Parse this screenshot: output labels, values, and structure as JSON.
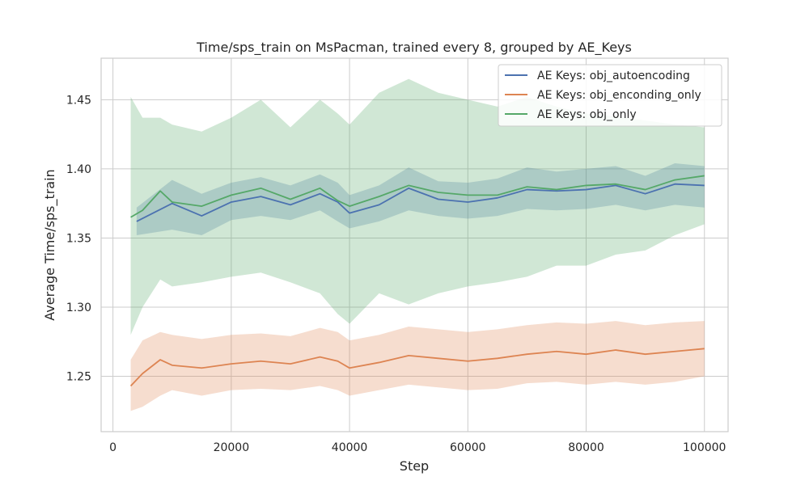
{
  "chart_data": {
    "type": "line",
    "title": "Time/sps_train on MsPacman, trained every 8, grouped by AE_Keys",
    "xlabel": "Step",
    "ylabel": "Average Time/sps_train",
    "xlim": [
      -2000,
      104000
    ],
    "ylim": [
      1.21,
      1.48
    ],
    "xticks": [
      0,
      20000,
      40000,
      60000,
      80000,
      100000
    ],
    "xtick_labels": [
      "0",
      "20000",
      "40000",
      "60000",
      "80000",
      "100000"
    ],
    "yticks": [
      1.25,
      1.3,
      1.35,
      1.4,
      1.45
    ],
    "ytick_labels": [
      "1.25",
      "1.30",
      "1.35",
      "1.40",
      "1.45"
    ],
    "grid": true,
    "legend_position": "top-right",
    "series": [
      {
        "name": "AE Keys: obj_autoencoding",
        "color": "#4c72b0",
        "x": [
          4000,
          10000,
          15000,
          20000,
          25000,
          30000,
          35000,
          38000,
          40000,
          45000,
          50000,
          55000,
          60000,
          65000,
          70000,
          75000,
          80000,
          85000,
          90000,
          95000,
          100000
        ],
        "y": [
          1.362,
          1.375,
          1.366,
          1.376,
          1.38,
          1.374,
          1.382,
          1.376,
          1.368,
          1.374,
          1.386,
          1.378,
          1.376,
          1.379,
          1.385,
          1.384,
          1.385,
          1.388,
          1.382,
          1.389,
          1.388
        ],
        "lower": [
          1.352,
          1.356,
          1.352,
          1.363,
          1.366,
          1.363,
          1.37,
          1.362,
          1.357,
          1.362,
          1.37,
          1.366,
          1.364,
          1.366,
          1.371,
          1.37,
          1.371,
          1.374,
          1.37,
          1.374,
          1.372
        ],
        "upper": [
          1.372,
          1.392,
          1.382,
          1.39,
          1.394,
          1.388,
          1.396,
          1.39,
          1.381,
          1.388,
          1.401,
          1.391,
          1.39,
          1.393,
          1.401,
          1.398,
          1.4,
          1.402,
          1.395,
          1.404,
          1.402
        ]
      },
      {
        "name": "AE Keys: obj_enconding_only",
        "color": "#dd8452",
        "x": [
          3000,
          5000,
          8000,
          10000,
          15000,
          20000,
          25000,
          30000,
          35000,
          38000,
          40000,
          45000,
          50000,
          55000,
          60000,
          65000,
          70000,
          75000,
          80000,
          85000,
          90000,
          95000,
          100000
        ],
        "y": [
          1.243,
          1.252,
          1.262,
          1.258,
          1.256,
          1.259,
          1.261,
          1.259,
          1.264,
          1.261,
          1.256,
          1.26,
          1.265,
          1.263,
          1.261,
          1.263,
          1.266,
          1.268,
          1.266,
          1.269,
          1.266,
          1.268,
          1.27
        ],
        "lower": [
          1.225,
          1.228,
          1.236,
          1.24,
          1.236,
          1.24,
          1.241,
          1.24,
          1.243,
          1.24,
          1.236,
          1.24,
          1.244,
          1.242,
          1.24,
          1.241,
          1.245,
          1.246,
          1.244,
          1.246,
          1.244,
          1.246,
          1.25
        ],
        "upper": [
          1.262,
          1.276,
          1.282,
          1.28,
          1.277,
          1.28,
          1.281,
          1.279,
          1.285,
          1.282,
          1.276,
          1.28,
          1.286,
          1.284,
          1.282,
          1.284,
          1.287,
          1.289,
          1.288,
          1.29,
          1.287,
          1.289,
          1.29
        ]
      },
      {
        "name": "AE Keys: obj_only",
        "color": "#55a868",
        "x": [
          3000,
          5000,
          8000,
          10000,
          15000,
          20000,
          25000,
          30000,
          35000,
          38000,
          40000,
          45000,
          50000,
          55000,
          60000,
          65000,
          70000,
          75000,
          80000,
          85000,
          90000,
          95000,
          100000
        ],
        "y": [
          1.365,
          1.37,
          1.384,
          1.376,
          1.373,
          1.381,
          1.386,
          1.378,
          1.386,
          1.377,
          1.373,
          1.38,
          1.388,
          1.383,
          1.381,
          1.381,
          1.387,
          1.385,
          1.388,
          1.389,
          1.385,
          1.392,
          1.395
        ],
        "lower": [
          1.28,
          1.3,
          1.32,
          1.315,
          1.318,
          1.322,
          1.325,
          1.318,
          1.31,
          1.295,
          1.288,
          1.31,
          1.302,
          1.31,
          1.315,
          1.318,
          1.322,
          1.33,
          1.33,
          1.338,
          1.341,
          1.352,
          1.36
        ],
        "upper": [
          1.452,
          1.437,
          1.437,
          1.432,
          1.427,
          1.437,
          1.45,
          1.43,
          1.45,
          1.44,
          1.432,
          1.455,
          1.465,
          1.455,
          1.45,
          1.445,
          1.452,
          1.445,
          1.44,
          1.438,
          1.435,
          1.432,
          1.43
        ]
      }
    ]
  }
}
